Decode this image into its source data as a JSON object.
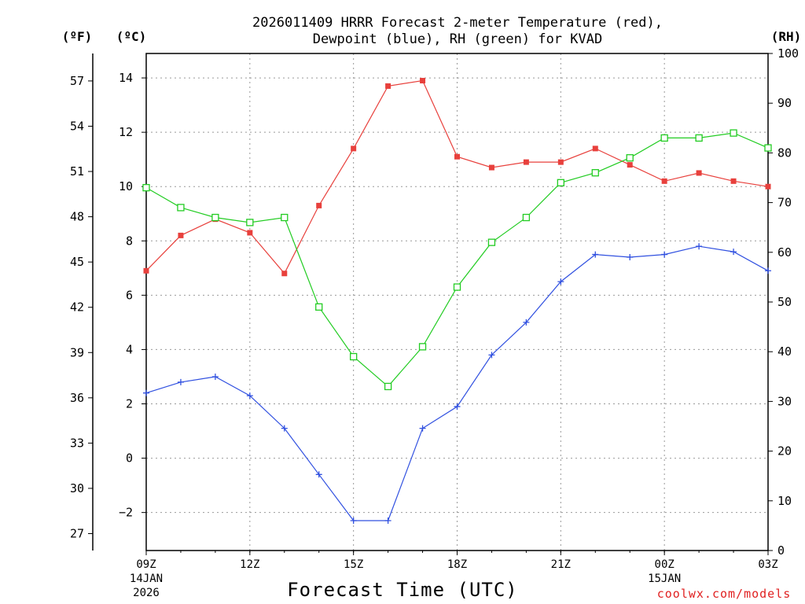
{
  "chart_data": {
    "type": "line",
    "title_line1": "2026011409 HRRR Forecast 2-meter Temperature (red),",
    "title_line2": "Dewpoint (blue), RH (green) for KVAD",
    "xlabel": "Forecast Time (UTC)",
    "credit": "coolwx.com/models",
    "units": {
      "left_f": "(ºF)",
      "left_c": "(ºC)",
      "right": "(RH)"
    },
    "x_hours": [
      0,
      1,
      2,
      3,
      4,
      5,
      6,
      7,
      8,
      9,
      10,
      11,
      12,
      13,
      14,
      15,
      16,
      17,
      18
    ],
    "x_ticks": [
      {
        "hour": 0,
        "label": "09Z",
        "sub1": "14JAN",
        "sub2": "2026"
      },
      {
        "hour": 3,
        "label": "12Z",
        "sub1": "",
        "sub2": ""
      },
      {
        "hour": 6,
        "label": "15Z",
        "sub1": "",
        "sub2": ""
      },
      {
        "hour": 9,
        "label": "18Z",
        "sub1": "",
        "sub2": ""
      },
      {
        "hour": 12,
        "label": "21Z",
        "sub1": "",
        "sub2": ""
      },
      {
        "hour": 15,
        "label": "00Z",
        "sub1": "15JAN",
        "sub2": ""
      },
      {
        "hour": 18,
        "label": "03Z",
        "sub1": "",
        "sub2": ""
      }
    ],
    "celsius_axis": {
      "min": -3.4,
      "max": 14.9,
      "ticks": [
        -2,
        0,
        2,
        4,
        6,
        8,
        10,
        12,
        14
      ]
    },
    "fahrenheit_ticks": [
      27,
      30,
      33,
      36,
      39,
      42,
      45,
      48,
      51,
      54,
      57
    ],
    "rh_axis": {
      "min": 0,
      "max": 100,
      "ticks": [
        0,
        10,
        20,
        30,
        40,
        50,
        60,
        70,
        80,
        90,
        100
      ]
    },
    "grid": true,
    "series": [
      {
        "name": "Temperature",
        "axis": "celsius",
        "color": "#e8403c",
        "marker": "filled-square",
        "values": [
          6.9,
          8.2,
          8.8,
          8.3,
          6.8,
          9.3,
          11.4,
          13.7,
          13.9,
          11.1,
          10.7,
          10.9,
          10.9,
          11.4,
          10.8,
          10.2,
          10.5,
          10.2,
          10.0
        ]
      },
      {
        "name": "Dewpoint",
        "axis": "celsius",
        "color": "#3050e0",
        "marker": "plus",
        "values": [
          2.4,
          2.8,
          3.0,
          2.3,
          1.1,
          -0.6,
          -2.3,
          -2.3,
          1.1,
          1.9,
          3.8,
          5.0,
          6.5,
          7.5,
          7.4,
          7.5,
          7.8,
          7.6,
          6.9
        ]
      },
      {
        "name": "RH",
        "axis": "rh",
        "color": "#22cc22",
        "marker": "open-square",
        "values": [
          73,
          69,
          67,
          66,
          67,
          49,
          39,
          33,
          41,
          53,
          62,
          67,
          74,
          76,
          79,
          83,
          83,
          84,
          81
        ]
      }
    ]
  }
}
